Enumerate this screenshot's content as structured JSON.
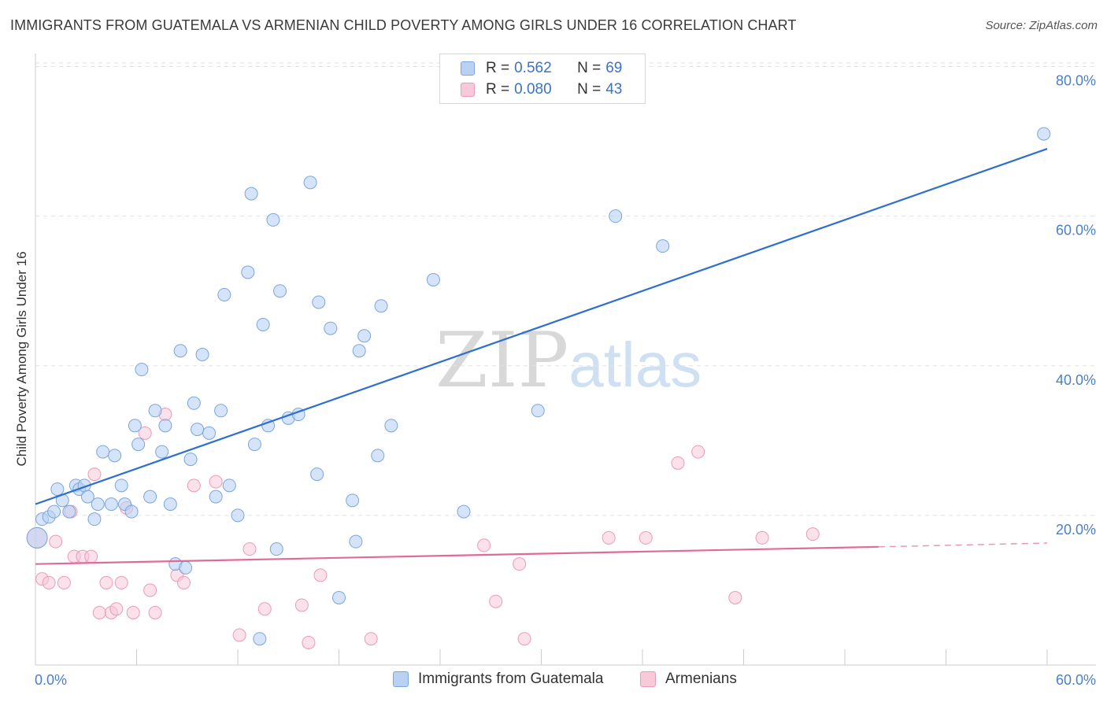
{
  "title": "IMMIGRANTS FROM GUATEMALA VS ARMENIAN CHILD POVERTY AMONG GIRLS UNDER 16 CORRELATION CHART",
  "source": "Source: ZipAtlas.com",
  "watermark": {
    "zip": "ZIP",
    "atlas": "atlas"
  },
  "legend_stats": [
    {
      "r_label": "R = ",
      "r_value": "0.562",
      "n_label": "N = ",
      "n_value": "69"
    },
    {
      "r_label": "R = ",
      "r_value": "0.080",
      "n_label": "N = ",
      "n_value": "43"
    }
  ],
  "colors": {
    "blue_fill": "#b9d2f3",
    "blue_stroke": "#7aa6de",
    "blue_line": "#2f6fcd",
    "pink_fill": "#f8c9d8",
    "pink_stroke": "#ec9ab5",
    "pink_line": "#e06a98",
    "tick_label": "#4a7fcc"
  },
  "chart_data": {
    "type": "scatter",
    "title": "IMMIGRANTS FROM GUATEMALA VS ARMENIAN CHILD POVERTY AMONG GIRLS UNDER 16 CORRELATION CHART",
    "xlabel": "",
    "ylabel": "Child Poverty Among Girls Under 16",
    "xlim": [
      0,
      60
    ],
    "ylim": [
      0,
      85
    ],
    "x_tick_labels": [
      "0.0%",
      "60.0%"
    ],
    "y_ticks": [
      {
        "value": 20,
        "label": "20.0%"
      },
      {
        "value": 40,
        "label": "40.0%"
      },
      {
        "value": 60,
        "label": "60.0%"
      },
      {
        "value": 80,
        "label": "80.0%"
      }
    ],
    "grid": true,
    "legend_position": "bottom",
    "series": [
      {
        "name": "Immigrants from Guatemala",
        "color": "#b9d2f3",
        "trend": {
          "x": [
            0,
            60
          ],
          "y": [
            21.5,
            69
          ]
        },
        "points": [
          [
            0.1,
            17
          ],
          [
            0.4,
            19.5
          ],
          [
            0.8,
            19.8
          ],
          [
            1.1,
            20.5
          ],
          [
            1.3,
            23.5
          ],
          [
            1.6,
            22
          ],
          [
            2.0,
            20.5
          ],
          [
            2.4,
            24
          ],
          [
            2.6,
            23.5
          ],
          [
            2.9,
            24
          ],
          [
            3.1,
            22.5
          ],
          [
            3.5,
            19.5
          ],
          [
            3.7,
            21.5
          ],
          [
            4.0,
            28.5
          ],
          [
            4.5,
            21.5
          ],
          [
            4.7,
            28
          ],
          [
            5.1,
            24
          ],
          [
            5.3,
            21.5
          ],
          [
            5.7,
            20.5
          ],
          [
            5.9,
            32
          ],
          [
            6.1,
            29.5
          ],
          [
            6.3,
            39.5
          ],
          [
            6.8,
            22.5
          ],
          [
            7.1,
            34
          ],
          [
            7.5,
            28.5
          ],
          [
            7.7,
            32
          ],
          [
            8.0,
            21.5
          ],
          [
            8.3,
            13.5
          ],
          [
            8.6,
            42
          ],
          [
            8.9,
            13
          ],
          [
            9.2,
            27.5
          ],
          [
            9.4,
            35
          ],
          [
            9.6,
            31.5
          ],
          [
            9.9,
            41.5
          ],
          [
            10.3,
            31
          ],
          [
            10.7,
            22.5
          ],
          [
            11.0,
            34
          ],
          [
            11.2,
            49.5
          ],
          [
            11.5,
            24
          ],
          [
            12.0,
            20
          ],
          [
            12.6,
            52.5
          ],
          [
            12.8,
            63
          ],
          [
            13.0,
            29.5
          ],
          [
            13.3,
            3.5
          ],
          [
            13.5,
            45.5
          ],
          [
            13.8,
            32
          ],
          [
            14.1,
            59.5
          ],
          [
            14.3,
            15.5
          ],
          [
            14.5,
            50
          ],
          [
            15.0,
            33
          ],
          [
            15.6,
            33.5
          ],
          [
            16.3,
            64.5
          ],
          [
            16.7,
            25.5
          ],
          [
            16.8,
            48.5
          ],
          [
            17.5,
            45
          ],
          [
            18.0,
            9
          ],
          [
            18.8,
            22
          ],
          [
            19.0,
            16.5
          ],
          [
            19.2,
            42
          ],
          [
            19.5,
            44
          ],
          [
            20.3,
            28
          ],
          [
            20.5,
            48
          ],
          [
            21.1,
            32
          ],
          [
            23.6,
            51.5
          ],
          [
            25.4,
            20.5
          ],
          [
            29.8,
            34
          ],
          [
            34.4,
            60
          ],
          [
            37.2,
            56
          ],
          [
            59.8,
            71
          ]
        ]
      },
      {
        "name": "Armenians",
        "color": "#f8c9d8",
        "trend": {
          "x": [
            0,
            50
          ],
          "y": [
            13.5,
            15.8
          ],
          "extension": {
            "x": [
              50,
              60
            ],
            "y": [
              15.8,
              16.3
            ]
          }
        },
        "points": [
          [
            0.1,
            17
          ],
          [
            0.4,
            11.5
          ],
          [
            0.8,
            11
          ],
          [
            1.2,
            16.5
          ],
          [
            1.7,
            11
          ],
          [
            2.1,
            20.5
          ],
          [
            2.3,
            14.5
          ],
          [
            2.8,
            14.5
          ],
          [
            3.3,
            14.5
          ],
          [
            3.5,
            25.5
          ],
          [
            3.8,
            7
          ],
          [
            4.2,
            11
          ],
          [
            4.5,
            7
          ],
          [
            4.8,
            7.5
          ],
          [
            5.1,
            11
          ],
          [
            5.4,
            21
          ],
          [
            5.8,
            7
          ],
          [
            6.5,
            31
          ],
          [
            6.8,
            10
          ],
          [
            7.1,
            7
          ],
          [
            7.7,
            33.5
          ],
          [
            8.4,
            12
          ],
          [
            8.8,
            11
          ],
          [
            9.4,
            24
          ],
          [
            10.7,
            24.5
          ],
          [
            12.1,
            4
          ],
          [
            12.7,
            15.5
          ],
          [
            13.6,
            7.5
          ],
          [
            15.8,
            8
          ],
          [
            16.2,
            3
          ],
          [
            16.9,
            12
          ],
          [
            19.9,
            3.5
          ],
          [
            26.6,
            16
          ],
          [
            27.3,
            8.5
          ],
          [
            29.0,
            3.5
          ],
          [
            28.7,
            13.5
          ],
          [
            34.0,
            17
          ],
          [
            36.2,
            17
          ],
          [
            38.1,
            27
          ],
          [
            39.3,
            28.5
          ],
          [
            41.5,
            9
          ],
          [
            43.1,
            17
          ],
          [
            46.1,
            17.5
          ]
        ]
      }
    ]
  }
}
